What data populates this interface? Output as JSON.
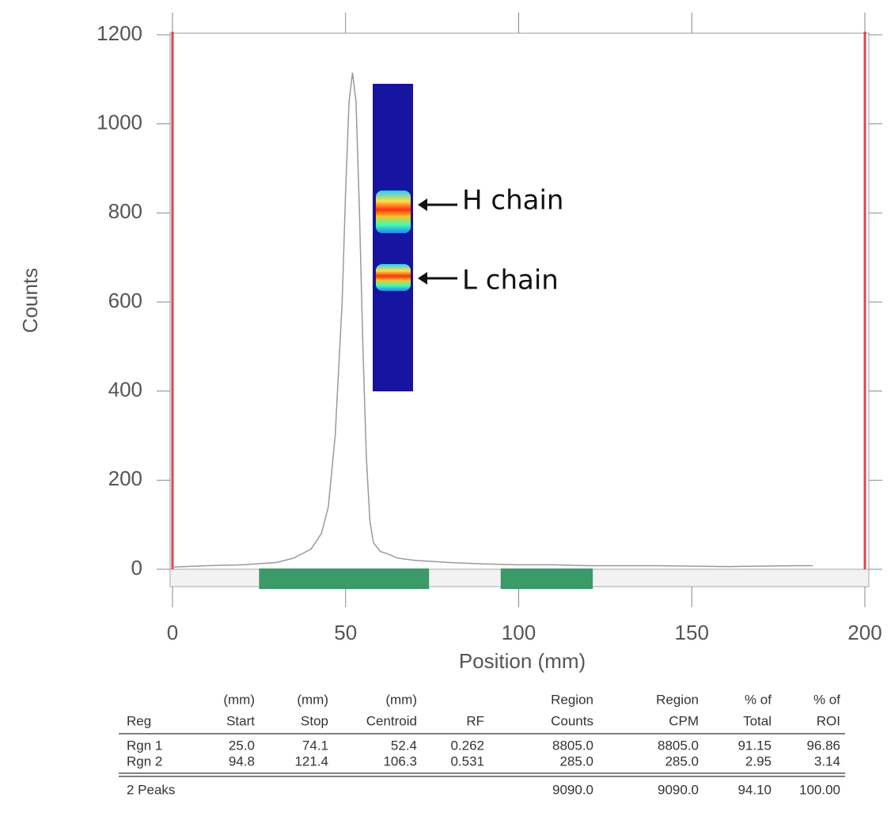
{
  "chart_data": {
    "type": "line",
    "x_label": "Position (mm)",
    "y_label": "Counts",
    "x": [
      0,
      10,
      20,
      30,
      35,
      40,
      43,
      45,
      47,
      49,
      50,
      51,
      52,
      53,
      54,
      55,
      56,
      57,
      58,
      60,
      62,
      65,
      70,
      80,
      90,
      100,
      110,
      120,
      140,
      160,
      180,
      185
    ],
    "values": [
      5,
      8,
      10,
      15,
      25,
      45,
      80,
      140,
      300,
      600,
      850,
      1050,
      1115,
      1050,
      800,
      500,
      250,
      110,
      60,
      40,
      35,
      25,
      20,
      15,
      12,
      10,
      10,
      8,
      8,
      6,
      8,
      8
    ],
    "color": "#9a9a9a",
    "region_color": "#3a9a68",
    "marker_color": "#e0454f",
    "xlim": [
      0,
      200
    ],
    "xticks": [
      0,
      50,
      100,
      150,
      200
    ],
    "ylim": [
      0,
      1200
    ],
    "yticks": [
      0,
      200,
      400,
      600,
      800,
      1000,
      1200
    ],
    "annotations": [
      "H chain",
      "L chain"
    ]
  },
  "table": {
    "header": [
      [
        "",
        "Reg"
      ],
      [
        "(mm)",
        "Start"
      ],
      [
        "(mm)",
        "Stop"
      ],
      [
        "(mm)",
        "Centroid"
      ],
      [
        "",
        "RF"
      ],
      [
        "Region",
        "Counts"
      ],
      [
        "Region",
        "CPM"
      ],
      [
        "% of",
        "Total"
      ],
      [
        "% of",
        "ROI"
      ]
    ],
    "rows": [
      [
        "Rgn  1",
        "25.0",
        "74.1",
        "52.4",
        "0.262",
        "8805.0",
        "8805.0",
        "91.15",
        "96.86"
      ],
      [
        "Rgn  2",
        "94.8",
        "121.4",
        "106.3",
        "0.531",
        "285.0",
        "285.0",
        "2.95",
        "3.14"
      ]
    ],
    "footer": {
      "label": "2 Peaks",
      "region_counts": "9090.0",
      "region_cpm": "9090.0",
      "pct_total": "94.10",
      "pct_roi": "100.00"
    }
  }
}
